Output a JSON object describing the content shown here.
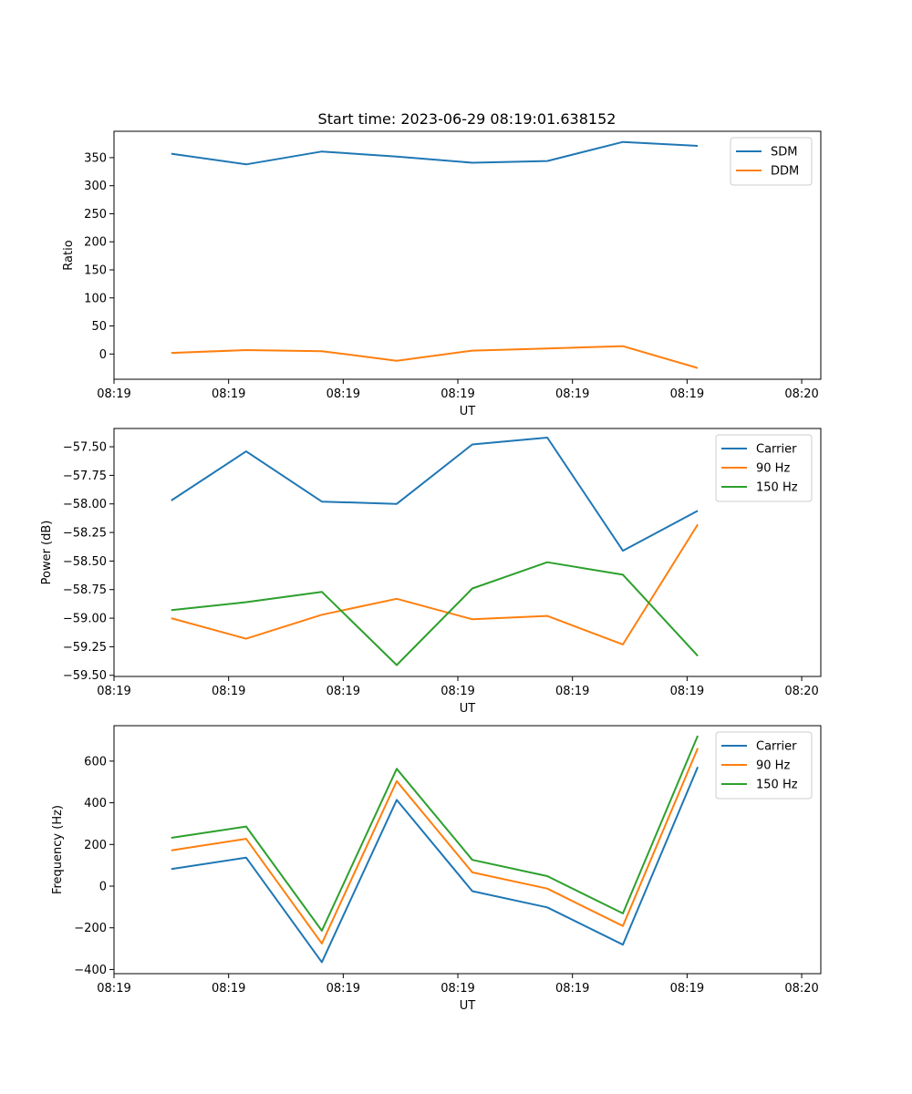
{
  "figure_title": "Start time: 2023-06-29 08:19:01.638152",
  "colors": {
    "blue": "#1f77b4",
    "orange": "#ff7f0e",
    "green": "#2ca02c"
  },
  "chart_data": [
    {
      "type": "line",
      "title": "",
      "xlabel": "UT",
      "ylabel": "Ratio",
      "xlim": [
        0,
        9.25
      ],
      "ylim": [
        -45,
        397
      ],
      "x_ticks": [
        0,
        1.5,
        3,
        4.5,
        6,
        7.5,
        9
      ],
      "x_tick_labels": [
        "08:19",
        "08:19",
        "08:19",
        "08:19",
        "08:19",
        "08:19",
        "08:20"
      ],
      "y_ticks": [
        0,
        50,
        100,
        150,
        200,
        250,
        300,
        350
      ],
      "y_tick_labels": [
        "0",
        "50",
        "100",
        "150",
        "200",
        "250",
        "300",
        "350"
      ],
      "x": [
        0.75,
        1.73,
        2.72,
        3.7,
        4.69,
        5.67,
        6.66,
        7.64
      ],
      "legend_loc": "upper right",
      "series": [
        {
          "name": "SDM",
          "color": "#1f77b4",
          "values": [
            357,
            338,
            361,
            352,
            341,
            344,
            378,
            371
          ]
        },
        {
          "name": "DDM",
          "color": "#ff7f0e",
          "values": [
            2,
            7,
            5,
            -12,
            6,
            10,
            14,
            -25
          ]
        }
      ]
    },
    {
      "type": "line",
      "title": "",
      "xlabel": "UT",
      "ylabel": "Power (dB)",
      "xlim": [
        0,
        9.25
      ],
      "ylim": [
        -59.51,
        -57.34
      ],
      "x_ticks": [
        0,
        1.5,
        3,
        4.5,
        6,
        7.5,
        9
      ],
      "x_tick_labels": [
        "08:19",
        "08:19",
        "08:19",
        "08:19",
        "08:19",
        "08:19",
        "08:20"
      ],
      "y_ticks": [
        -59.5,
        -59.25,
        -59.0,
        -58.75,
        -58.5,
        -58.25,
        -58.0,
        -57.75,
        -57.5
      ],
      "y_tick_labels": [
        "−59.50",
        "−59.25",
        "−59.00",
        "−58.75",
        "−58.50",
        "−58.25",
        "−58.00",
        "−57.75",
        "−57.50"
      ],
      "x": [
        0.75,
        1.73,
        2.72,
        3.7,
        4.69,
        5.67,
        6.66,
        7.64
      ],
      "legend_loc": "upper right",
      "series": [
        {
          "name": "Carrier",
          "color": "#1f77b4",
          "values": [
            -57.97,
            -57.54,
            -57.98,
            -58.0,
            -57.48,
            -57.42,
            -58.41,
            -58.06
          ]
        },
        {
          "name": "90 Hz",
          "color": "#ff7f0e",
          "values": [
            -59.0,
            -59.18,
            -58.97,
            -58.83,
            -59.01,
            -58.98,
            -59.23,
            -58.18
          ]
        },
        {
          "name": "150 Hz",
          "color": "#2ca02c",
          "values": [
            -58.93,
            -58.86,
            -58.77,
            -59.41,
            -58.74,
            -58.51,
            -58.62,
            -59.33
          ]
        }
      ]
    },
    {
      "type": "line",
      "title": "",
      "xlabel": "UT",
      "ylabel": "Frequency (Hz)",
      "xlim": [
        0,
        9.25
      ],
      "ylim": [
        -420,
        770
      ],
      "x_ticks": [
        0,
        1.5,
        3,
        4.5,
        6,
        7.5,
        9
      ],
      "x_tick_labels": [
        "08:19",
        "08:19",
        "08:19",
        "08:19",
        "08:19",
        "08:19",
        "08:20"
      ],
      "y_ticks": [
        -400,
        -200,
        0,
        200,
        400,
        600
      ],
      "y_tick_labels": [
        "−400",
        "−200",
        "0",
        "200",
        "400",
        "600"
      ],
      "x": [
        0.75,
        1.73,
        2.72,
        3.7,
        4.69,
        5.67,
        6.66,
        7.64
      ],
      "legend_loc": "upper right",
      "series": [
        {
          "name": "Carrier",
          "color": "#1f77b4",
          "values": [
            82,
            137,
            -365,
            414,
            -24,
            -102,
            -281,
            572
          ]
        },
        {
          "name": "90 Hz",
          "color": "#ff7f0e",
          "values": [
            172,
            227,
            -275,
            504,
            66,
            -12,
            -191,
            662
          ]
        },
        {
          "name": "150 Hz",
          "color": "#2ca02c",
          "values": [
            232,
            286,
            -214,
            563,
            126,
            48,
            -131,
            722
          ]
        }
      ]
    }
  ]
}
